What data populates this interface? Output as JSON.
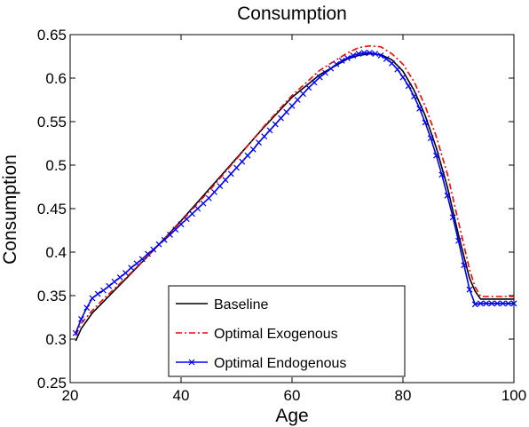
{
  "chart_data": {
    "type": "line",
    "title": "Consumption",
    "xlabel": "Age",
    "ylabel": "Consumption",
    "xlim": [
      20,
      100
    ],
    "ylim": [
      0.25,
      0.65
    ],
    "xticks": [
      20,
      40,
      60,
      80,
      100
    ],
    "xtick_labels": [
      "20",
      "40",
      "60",
      "80",
      "100"
    ],
    "yticks": [
      0.25,
      0.3,
      0.35,
      0.4,
      0.45,
      0.5,
      0.55,
      0.6,
      0.65
    ],
    "ytick_labels": [
      "0.25",
      "0.3",
      "0.35",
      "0.4",
      "0.45",
      "0.5",
      "0.55",
      "0.6",
      "0.65"
    ],
    "grid": false,
    "legend_position": "bottom-center",
    "series": [
      {
        "name": "Baseline",
        "color": "#000000",
        "style": "solid",
        "marker": "none",
        "x": [
          21,
          22,
          24,
          26,
          28,
          30,
          35,
          40,
          45,
          50,
          55,
          60,
          65,
          70,
          72,
          74,
          76,
          78,
          80,
          82,
          84,
          86,
          88,
          90,
          92,
          93,
          94,
          96,
          98,
          100
        ],
        "y": [
          0.298,
          0.312,
          0.33,
          0.343,
          0.356,
          0.369,
          0.402,
          0.436,
          0.472,
          0.508,
          0.544,
          0.578,
          0.604,
          0.622,
          0.626,
          0.628,
          0.627,
          0.621,
          0.608,
          0.586,
          0.557,
          0.52,
          0.475,
          0.42,
          0.37,
          0.355,
          0.346,
          0.346,
          0.346,
          0.346
        ]
      },
      {
        "name": "Optimal Exogenous",
        "color": "#ff0000",
        "style": "dashdot",
        "marker": "none",
        "x": [
          21,
          22,
          24,
          26,
          28,
          30,
          35,
          40,
          45,
          50,
          55,
          60,
          65,
          70,
          72,
          74,
          76,
          78,
          80,
          82,
          84,
          86,
          88,
          90,
          92,
          93,
          94,
          96,
          98,
          100
        ],
        "y": [
          0.304,
          0.318,
          0.333,
          0.346,
          0.358,
          0.37,
          0.402,
          0.435,
          0.47,
          0.507,
          0.545,
          0.58,
          0.609,
          0.629,
          0.635,
          0.637,
          0.636,
          0.628,
          0.616,
          0.596,
          0.568,
          0.533,
          0.49,
          0.435,
          0.38,
          0.36,
          0.349,
          0.349,
          0.349,
          0.349
        ]
      },
      {
        "name": "Optimal Endogenous",
        "color": "#0000ff",
        "style": "solid",
        "marker": "x",
        "x": [
          21,
          22,
          23,
          24,
          25,
          26,
          27,
          28,
          29,
          30,
          31,
          32,
          33,
          34,
          35,
          36,
          37,
          38,
          39,
          40,
          41,
          42,
          43,
          44,
          45,
          46,
          47,
          48,
          49,
          50,
          51,
          52,
          53,
          54,
          55,
          56,
          57,
          58,
          59,
          60,
          61,
          62,
          63,
          64,
          65,
          66,
          67,
          68,
          69,
          70,
          71,
          72,
          73,
          74,
          75,
          76,
          77,
          78,
          79,
          80,
          81,
          82,
          83,
          84,
          85,
          86,
          87,
          88,
          89,
          90,
          91,
          92,
          93,
          94,
          95,
          96,
          97,
          98,
          99,
          100
        ],
        "y": [
          0.307,
          0.323,
          0.336,
          0.347,
          0.352,
          0.356,
          0.361,
          0.366,
          0.371,
          0.376,
          0.382,
          0.387,
          0.392,
          0.398,
          0.403,
          0.409,
          0.414,
          0.42,
          0.426,
          0.432,
          0.438,
          0.444,
          0.45,
          0.456,
          0.462,
          0.469,
          0.476,
          0.483,
          0.49,
          0.497,
          0.504,
          0.511,
          0.518,
          0.526,
          0.533,
          0.54,
          0.547,
          0.554,
          0.561,
          0.568,
          0.575,
          0.582,
          0.589,
          0.595,
          0.601,
          0.606,
          0.611,
          0.616,
          0.62,
          0.623,
          0.626,
          0.628,
          0.629,
          0.629,
          0.628,
          0.626,
          0.622,
          0.617,
          0.61,
          0.601,
          0.591,
          0.579,
          0.565,
          0.549,
          0.531,
          0.511,
          0.489,
          0.465,
          0.44,
          0.413,
          0.385,
          0.357,
          0.34,
          0.341,
          0.341,
          0.341,
          0.341,
          0.341,
          0.341,
          0.341
        ]
      }
    ]
  }
}
